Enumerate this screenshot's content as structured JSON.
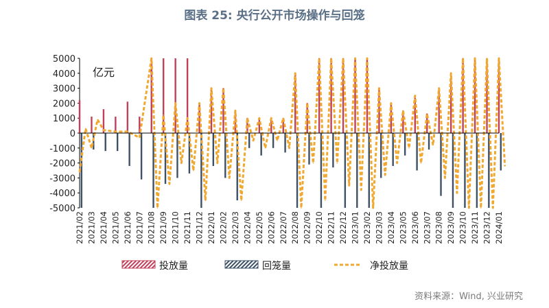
{
  "title": "图表 25: 央行公开市场操作与回笼",
  "source": "资料来源：Wind, 兴业研究",
  "chart_data": {
    "type": "bar",
    "unit_label": "亿元",
    "ylim": [
      -5000,
      5000
    ],
    "yticks": [
      5000,
      4000,
      3000,
      2000,
      1000,
      0,
      -1000,
      -2000,
      -3000,
      -4000,
      -5000
    ],
    "x_ticks": [
      "2021/02",
      "2021/03",
      "2021/04",
      "2021/05",
      "2021/06",
      "2021/07",
      "2021/08",
      "2021/09",
      "2021/10",
      "2021/11",
      "2021/12",
      "2022/01",
      "2022/02",
      "2022/03",
      "2022/04",
      "2022/05",
      "2022/06",
      "2022/07",
      "2022/08",
      "2022/09",
      "2022/10",
      "2022/11",
      "2022/12",
      "2023/01",
      "2023/02",
      "2023/03",
      "2023/04",
      "2023/05",
      "2023/06",
      "2023/07",
      "2023/08",
      "2023/09",
      "2023/10",
      "2023/11",
      "2023/12",
      "2024/01"
    ],
    "legend": [
      "投放量",
      "回笼量",
      "净投放量"
    ],
    "legend_position": "bottom",
    "colors": {
      "injection": "#c0405a",
      "withdrawal": "#3e5066",
      "net": "#f0a830"
    },
    "series": [
      {
        "name": "投放量",
        "points": [
          {
            "x": "2021/02",
            "y": 2200
          },
          {
            "x": "2021/03",
            "y": 1100
          },
          {
            "x": "2021/04",
            "y": 1600
          },
          {
            "x": "2021/05",
            "y": 1100
          },
          {
            "x": "2021/06",
            "y": 2100
          },
          {
            "x": "2021/07",
            "y": 1100
          },
          {
            "x": "2021/08",
            "y": 5000
          },
          {
            "x": "2021/09",
            "y": 5000
          },
          {
            "x": "2021/10",
            "y": 5000
          },
          {
            "x": "2021/11",
            "y": 5000
          },
          {
            "x": "2021/12",
            "y": 2000
          },
          {
            "x": "2022/01",
            "y": 3000
          },
          {
            "x": "2022/02",
            "y": 3000
          },
          {
            "x": "2022/03",
            "y": 1500
          },
          {
            "x": "2022/04",
            "y": 1000
          },
          {
            "x": "2022/05",
            "y": 1000
          },
          {
            "x": "2022/06",
            "y": 1000
          },
          {
            "x": "2022/07",
            "y": 1000
          },
          {
            "x": "2022/08",
            "y": 4000
          },
          {
            "x": "2022/09",
            "y": 2000
          },
          {
            "x": "2022/10",
            "y": 5000
          },
          {
            "x": "2022/11",
            "y": 5000
          },
          {
            "x": "2022/12",
            "y": 5000
          },
          {
            "x": "2023/01",
            "y": 5000
          },
          {
            "x": "2023/02",
            "y": 5000
          },
          {
            "x": "2023/03",
            "y": 3000
          },
          {
            "x": "2023/04",
            "y": 2000
          },
          {
            "x": "2023/05",
            "y": 1500
          },
          {
            "x": "2023/06",
            "y": 2500
          },
          {
            "x": "2023/07",
            "y": 1300
          },
          {
            "x": "2023/08",
            "y": 3000
          },
          {
            "x": "2023/09",
            "y": 4000
          },
          {
            "x": "2023/10",
            "y": 5000
          },
          {
            "x": "2023/11",
            "y": 5000
          },
          {
            "x": "2023/12",
            "y": 5000
          },
          {
            "x": "2024/01",
            "y": 5000
          }
        ]
      },
      {
        "name": "回笼量",
        "points": [
          {
            "x": "2021/02",
            "y": -5000
          },
          {
            "x": "2021/03",
            "y": -1100
          },
          {
            "x": "2021/04",
            "y": -1200
          },
          {
            "x": "2021/05",
            "y": -1200
          },
          {
            "x": "2021/06",
            "y": -2200
          },
          {
            "x": "2021/07",
            "y": -3100
          },
          {
            "x": "2021/08",
            "y": -5000
          },
          {
            "x": "2021/09",
            "y": -3400
          },
          {
            "x": "2021/10",
            "y": -3000
          },
          {
            "x": "2021/11",
            "y": -2700
          },
          {
            "x": "2021/12",
            "y": -5000
          },
          {
            "x": "2022/01",
            "y": -2200
          },
          {
            "x": "2022/02",
            "y": -3000
          },
          {
            "x": "2022/03",
            "y": -4500
          },
          {
            "x": "2022/04",
            "y": -1000
          },
          {
            "x": "2022/05",
            "y": -1500
          },
          {
            "x": "2022/06",
            "y": -1000
          },
          {
            "x": "2022/07",
            "y": -1300
          },
          {
            "x": "2022/08",
            "y": -5000
          },
          {
            "x": "2022/09",
            "y": -2100
          },
          {
            "x": "2022/10",
            "y": -5000
          },
          {
            "x": "2022/11",
            "y": -2300
          },
          {
            "x": "2022/12",
            "y": -5000
          },
          {
            "x": "2023/01",
            "y": -5000
          },
          {
            "x": "2023/02",
            "y": -5000
          },
          {
            "x": "2023/03",
            "y": -3000
          },
          {
            "x": "2023/04",
            "y": -2200
          },
          {
            "x": "2023/05",
            "y": -1500
          },
          {
            "x": "2023/06",
            "y": -2500
          },
          {
            "x": "2023/07",
            "y": -1100
          },
          {
            "x": "2023/08",
            "y": -4200
          },
          {
            "x": "2023/09",
            "y": -5000
          },
          {
            "x": "2023/10",
            "y": -5000
          },
          {
            "x": "2023/11",
            "y": -5000
          },
          {
            "x": "2023/12",
            "y": -5000
          },
          {
            "x": "2024/01",
            "y": -2500
          }
        ]
      },
      {
        "name": "净投放量",
        "points": [
          {
            "x": "2021/02",
            "y": -2600
          },
          {
            "x": "2021/02",
            "y": 300
          },
          {
            "x": "2021/03",
            "y": -1000
          },
          {
            "x": "2021/03",
            "y": 900
          },
          {
            "x": "2021/04",
            "y": 200
          },
          {
            "x": "2021/05",
            "y": 100
          },
          {
            "x": "2021/06",
            "y": 100
          },
          {
            "x": "2021/07",
            "y": -300
          },
          {
            "x": "2021/08",
            "y": 5000
          },
          {
            "x": "2021/08",
            "y": -5000
          },
          {
            "x": "2021/09",
            "y": 1200
          },
          {
            "x": "2021/09",
            "y": -3400
          },
          {
            "x": "2021/10",
            "y": 2000
          },
          {
            "x": "2021/10",
            "y": -2000
          },
          {
            "x": "2021/11",
            "y": 1000
          },
          {
            "x": "2021/11",
            "y": -2500
          },
          {
            "x": "2021/12",
            "y": 2000
          },
          {
            "x": "2021/12",
            "y": -4500
          },
          {
            "x": "2022/01",
            "y": 3000
          },
          {
            "x": "2022/01",
            "y": -2000
          },
          {
            "x": "2022/02",
            "y": 3000
          },
          {
            "x": "2022/02",
            "y": -3000
          },
          {
            "x": "2022/03",
            "y": 1500
          },
          {
            "x": "2022/03",
            "y": -4500
          },
          {
            "x": "2022/04",
            "y": 1000
          },
          {
            "x": "2022/04",
            "y": -500
          },
          {
            "x": "2022/05",
            "y": 1000
          },
          {
            "x": "2022/05",
            "y": -1000
          },
          {
            "x": "2022/06",
            "y": 1000
          },
          {
            "x": "2022/06",
            "y": -500
          },
          {
            "x": "2022/07",
            "y": 1000
          },
          {
            "x": "2022/07",
            "y": -1000
          },
          {
            "x": "2022/08",
            "y": 4000
          },
          {
            "x": "2022/08",
            "y": -5000
          },
          {
            "x": "2022/09",
            "y": 2000
          },
          {
            "x": "2022/09",
            "y": -2000
          },
          {
            "x": "2022/10",
            "y": 5000
          },
          {
            "x": "2022/10",
            "y": -4500
          },
          {
            "x": "2022/11",
            "y": 5000
          },
          {
            "x": "2022/11",
            "y": -2000
          },
          {
            "x": "2022/12",
            "y": 5000
          },
          {
            "x": "2022/12",
            "y": -3500
          },
          {
            "x": "2023/01",
            "y": 5000
          },
          {
            "x": "2023/01",
            "y": -3800
          },
          {
            "x": "2023/02",
            "y": 5000
          },
          {
            "x": "2023/02",
            "y": -5000
          },
          {
            "x": "2023/03",
            "y": 3000
          },
          {
            "x": "2023/03",
            "y": -2800
          },
          {
            "x": "2023/04",
            "y": 2000
          },
          {
            "x": "2023/04",
            "y": -2000
          },
          {
            "x": "2023/05",
            "y": 1500
          },
          {
            "x": "2023/05",
            "y": -1000
          },
          {
            "x": "2023/06",
            "y": 2500
          },
          {
            "x": "2023/06",
            "y": -2000
          },
          {
            "x": "2023/07",
            "y": 1300
          },
          {
            "x": "2023/07",
            "y": -800
          },
          {
            "x": "2023/08",
            "y": 3000
          },
          {
            "x": "2023/08",
            "y": -3000
          },
          {
            "x": "2023/09",
            "y": 4000
          },
          {
            "x": "2023/09",
            "y": -4000
          },
          {
            "x": "2023/10",
            "y": 5000
          },
          {
            "x": "2023/10",
            "y": -5000
          },
          {
            "x": "2023/11",
            "y": 5000
          },
          {
            "x": "2023/11",
            "y": -5000
          },
          {
            "x": "2023/12",
            "y": 5000
          },
          {
            "x": "2023/12",
            "y": -5000
          },
          {
            "x": "2024/01",
            "y": 5000
          },
          {
            "x": "2024/01",
            "y": -2200
          }
        ]
      }
    ]
  }
}
